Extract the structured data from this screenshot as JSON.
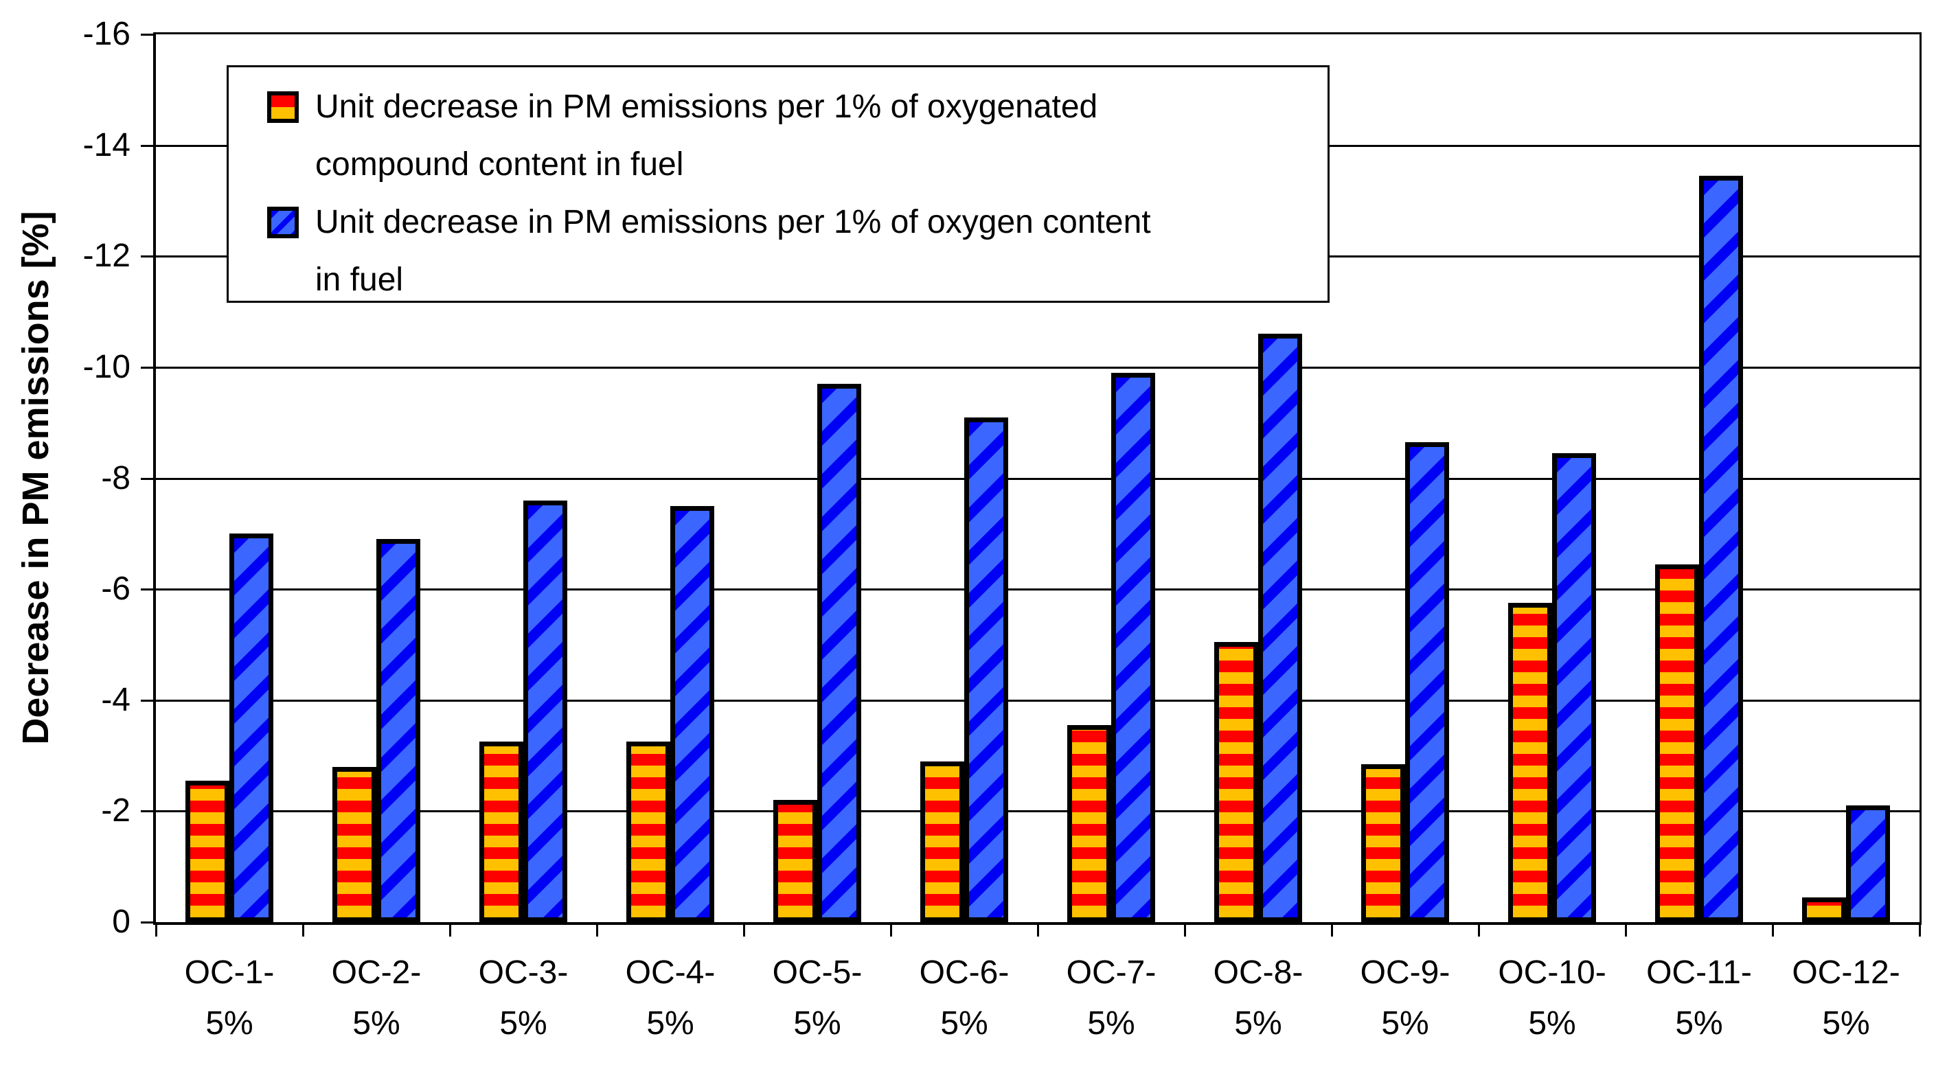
{
  "figure": {
    "background_color": "#FFFFFF",
    "text_color": "#000000"
  },
  "chart_data": {
    "type": "bar",
    "title": "",
    "xlabel": "",
    "ylabel": "Decrease in PM emissions [%]",
    "y_axis": {
      "range_top": -16,
      "range_bottom": 0,
      "tick_step": 2,
      "tick_labels": [
        "-16",
        "-14",
        "-12",
        "-10",
        "-8",
        "-6",
        "-4",
        "-2",
        "0"
      ],
      "note": "axis inverted: negative values increase upward"
    },
    "grid": {
      "horizontal": true,
      "vertical": false
    },
    "legend": {
      "position": "top-left-inside",
      "border": true,
      "background": "#FFFFFF"
    },
    "categories": [
      {
        "label": "OC-1-5%",
        "lines": [
          "OC-1-",
          "5%"
        ]
      },
      {
        "label": "OC-2-5%",
        "lines": [
          "OC-2-",
          "5%"
        ]
      },
      {
        "label": "OC-3-5%",
        "lines": [
          "OC-3-",
          "5%"
        ]
      },
      {
        "label": "OC-4-5%",
        "lines": [
          "OC-4-",
          "5%"
        ]
      },
      {
        "label": "OC-5-5%",
        "lines": [
          "OC-5-",
          "5%"
        ]
      },
      {
        "label": "OC-6-5%",
        "lines": [
          "OC-6-",
          "5%"
        ]
      },
      {
        "label": "OC-7-5%",
        "lines": [
          "OC-7-",
          "5%"
        ]
      },
      {
        "label": "OC-8-5%",
        "lines": [
          "OC-8-",
          "5%"
        ]
      },
      {
        "label": "OC-9-5%",
        "lines": [
          "OC-9-",
          "5%"
        ]
      },
      {
        "label": "OC-10-5%",
        "lines": [
          "OC-10-",
          "5%"
        ]
      },
      {
        "label": "OC-11-5%",
        "lines": [
          "OC-11-",
          "5%"
        ]
      },
      {
        "label": "OC-12-5%",
        "lines": [
          "OC-12-",
          "5%"
        ]
      }
    ],
    "series": [
      {
        "name": "Unit decrease in PM emissions per 1% of oxygenated compound content in fuel",
        "legend_lines": [
          "Unit decrease in PM emissions per 1% of oxygenated",
          "compound content in fuel"
        ],
        "pattern": "horizontal-stripes",
        "colors": {
          "stripe_a": "#FF0000",
          "stripe_b": "#FFC000",
          "border": "#000000"
        },
        "values": [
          -2.55,
          -2.8,
          -3.25,
          -3.25,
          -2.2,
          -2.9,
          -3.55,
          -5.05,
          -2.85,
          -5.75,
          -6.45,
          -0.45
        ]
      },
      {
        "name": "Unit decrease in PM emissions per 1% of oxygen content in fuel",
        "legend_lines": [
          "Unit decrease in PM emissions per 1% of oxygen content",
          "in fuel"
        ],
        "pattern": "diagonal-stripes",
        "colors": {
          "stripe_a": "#3B66FF",
          "stripe_b": "#0000F5",
          "border": "#000000"
        },
        "values": [
          -7.0,
          -6.9,
          -7.6,
          -7.5,
          -9.7,
          -9.1,
          -9.9,
          -10.6,
          -8.65,
          -8.45,
          -13.45,
          -2.1
        ]
      }
    ]
  }
}
